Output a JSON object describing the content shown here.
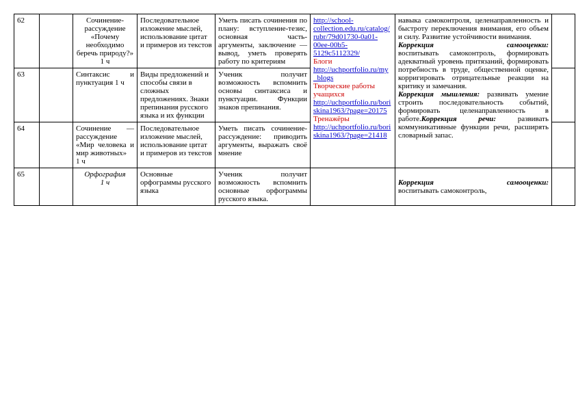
{
  "rows": [
    {
      "num": "62",
      "topic": "Сочинение-рассуждение «Почему необходимо беречь природу?»\n1 ч",
      "content": "Последовательное изложение мыслей, использование цитат и примеров из текстов",
      "skills": "Уметь писать сочинения по плану: вступление-тезис, основная часть- аргументы, заключение — вывод, уметь проверять работу по критериям"
    },
    {
      "num": "63",
      "topic": "Синтаксис и пунктуация\n1 ч",
      "content": "Виды предложений и способы связи в сложных предложениях. Знаки препинания русского языка и их функции",
      "skills": "Ученик получит возможность вспомнить основы синтаксиса и пунктуации. Функции знаков препинания."
    },
    {
      "num": "64",
      "topic": "Сочинение — рассуждение «Мир человека и мир животных»\n1 ч",
      "content": "Последовательное изложение мыслей, использование цитат и примеров из текстов",
      "skills": "Уметь писать сочинение-рассуждение: приводить аргументы, выражать своё мнение"
    },
    {
      "num": "65",
      "topic": "Орфография\n1 ч",
      "content": "Основные орфограммы русского языка",
      "skills": "Ученик получит возможность вспомнить основные орфограммы русского языка."
    }
  ],
  "links": {
    "l1": "http://school-collection.edu.ru/catalog/rubr/79d01730-0a01-00ee-00b5-5129c5112329/",
    "lab_blogs": "Блоги",
    "l2": "http://uchportfolio.ru/my_blogs",
    "lab_works": "Творческие работы учащихся",
    "l3": "http://uchportfolio.ru/boriskina1963/?page=20175",
    "lab_train": "Тренажёры",
    "l4": "http://uchportfolio.ru/boriskina1963/?page=21418"
  },
  "corr": {
    "p1a": "навыка самоконтроля, целенаправленность и быстроту переключения внимания, его объем и силу. Развитие устойчивости внимания.",
    "h1": "Коррекция самооценки:",
    "p1b": " воспитывать самоконтроль, формировать адекватный уровень притязаний, формировать потребность в труде, общественной оценке, корригировать отрицательные реакции на критику и замечания.",
    "h2": "Коррекция мышления:",
    "p2": " развивать умение строить последовательность событий, формировать целенаправленность в работе.",
    "h3": "Коррекция речи:",
    "p3": " развивать коммуникативные функции речи, расширять словарный запас.",
    "h4": "Коррекция самооценки:",
    "p4": " воспитывать самоконтроль,"
  }
}
